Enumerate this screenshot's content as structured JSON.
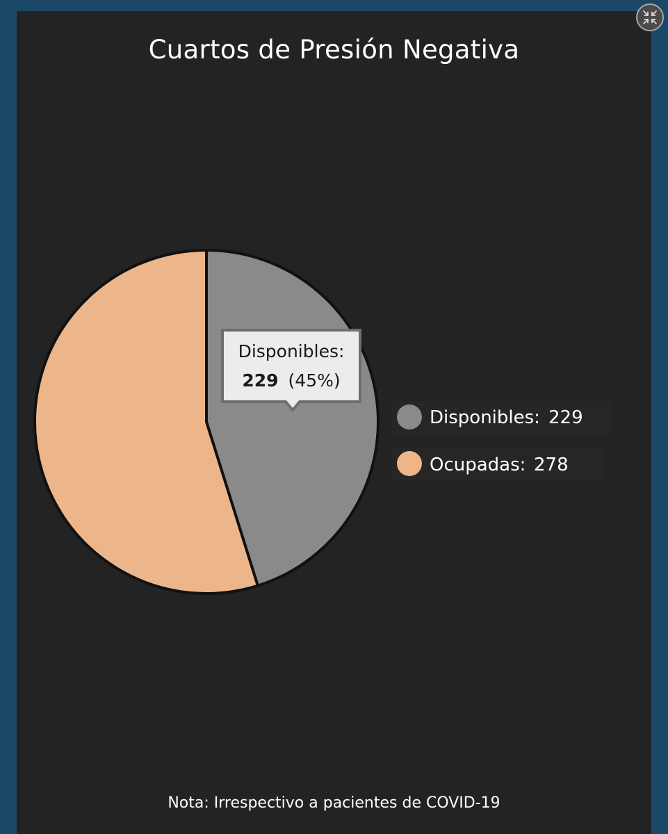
{
  "title": "Cuartos de Presión Negativa",
  "note": "Nota: Irrespectivo a pacientes de COVID-19",
  "expand_icon": "collapse-arrows-icon",
  "tooltip": {
    "label": "Disponibles:",
    "value": "229",
    "percent": "(45%)"
  },
  "legend": [
    {
      "label": "Disponibles:",
      "value": "229",
      "color": "#8a8a8a"
    },
    {
      "label": "Ocupadas:",
      "value": "278",
      "color": "#edb68a"
    }
  ],
  "chart_data": {
    "type": "pie",
    "title": "Cuartos de Presión Negativa",
    "categories": [
      "Disponibles",
      "Ocupadas"
    ],
    "values": [
      229,
      278
    ],
    "colors": [
      "#8a8a8a",
      "#edb68a"
    ],
    "legend_position": "right"
  }
}
